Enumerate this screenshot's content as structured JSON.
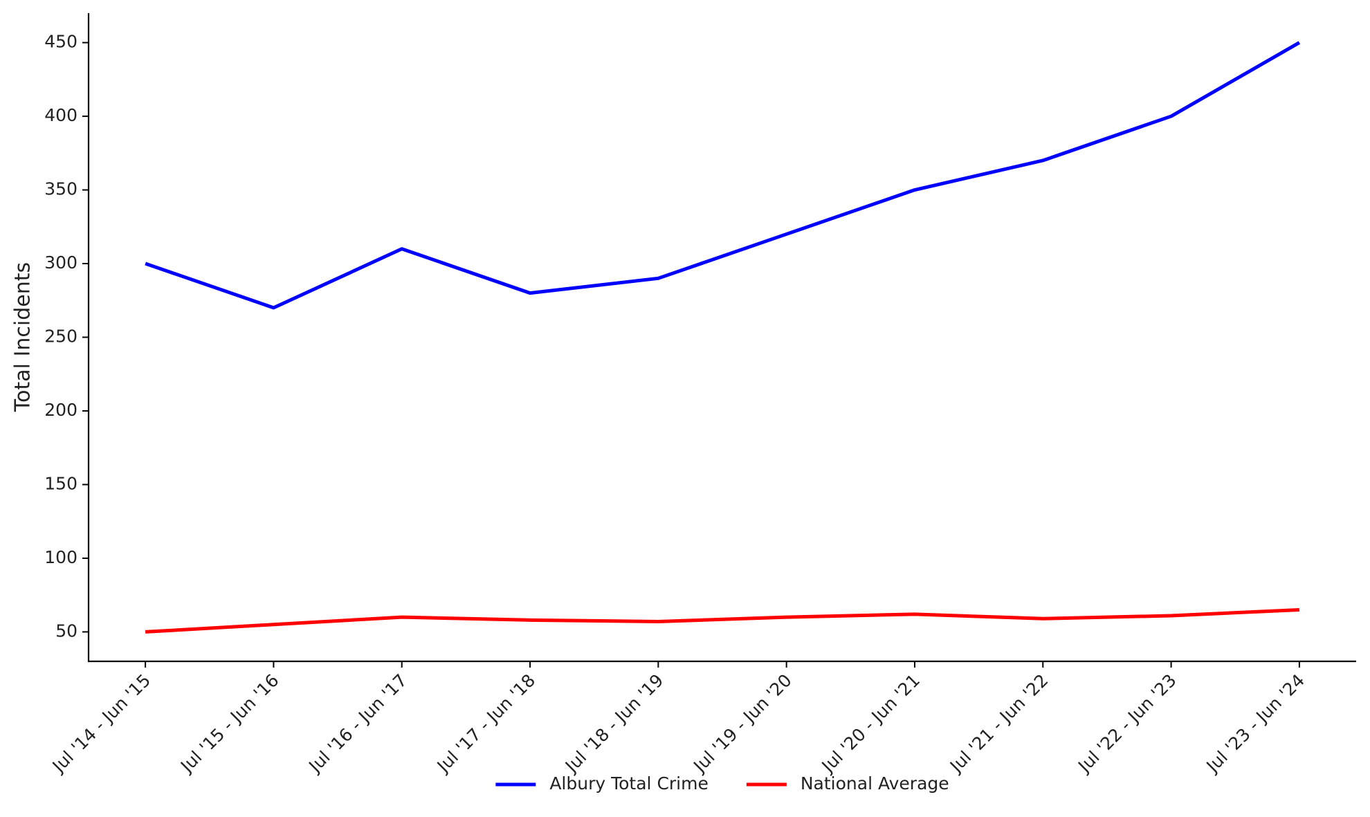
{
  "chart_data": {
    "type": "line",
    "y_label": "Total Incidents",
    "categories": [
      "Jul '14 - Jun '15",
      "Jul '15 - Jun '16",
      "Jul '16 - Jun '17",
      "Jul '17 - Jun '18",
      "Jul '18 - Jun '19",
      "Jul '19 - Jun '20",
      "Jul '20 - Jun '21",
      "Jul '21 - Jun '22",
      "Jul '22 - Jun '23",
      "Jul '23 - Jun '24"
    ],
    "series": [
      {
        "name": "Albury Total Crime",
        "color": "#0000ff",
        "values": [
          300,
          270,
          310,
          280,
          290,
          320,
          350,
          370,
          400,
          450
        ]
      },
      {
        "name": "National Average",
        "color": "#ff0000",
        "values": [
          50,
          55,
          60,
          58,
          57,
          60,
          62,
          59,
          61,
          65
        ]
      }
    ],
    "ylim": [
      30,
      470
    ],
    "yticks": [
      50,
      100,
      150,
      200,
      250,
      300,
      350,
      400,
      450
    ],
    "grid": false,
    "legend": "lower center"
  }
}
